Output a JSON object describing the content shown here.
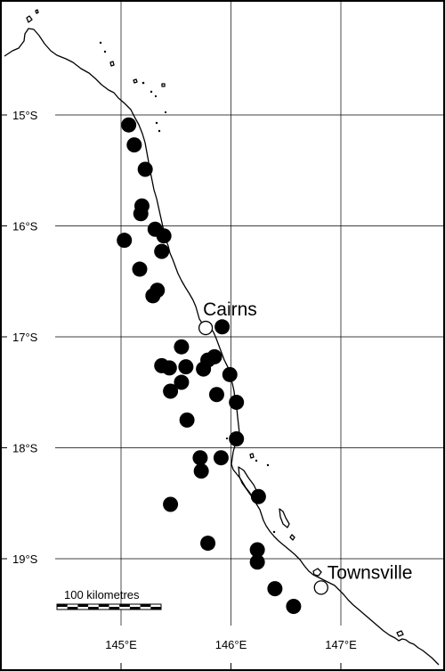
{
  "map": {
    "lat_labels": [
      {
        "value": -15,
        "text": "15°S"
      },
      {
        "value": -16,
        "text": "16°S"
      },
      {
        "value": -17,
        "text": "17°S"
      },
      {
        "value": -18,
        "text": "18°S"
      },
      {
        "value": -19,
        "text": "19°S"
      }
    ],
    "lon_labels": [
      {
        "value": 145,
        "text": "145°E"
      },
      {
        "value": 146,
        "text": "146°E"
      },
      {
        "value": 147,
        "text": "147°E"
      }
    ],
    "towns": [
      {
        "name": "Cairns",
        "lon": 145.77,
        "lat": -16.92
      },
      {
        "name": "Townsville",
        "lon": 146.82,
        "lat": -19.26
      }
    ],
    "scale_bar": {
      "label": "100 kilometres"
    },
    "colors": {
      "site": "#000000",
      "town_fill": "#ffffff",
      "grid": "#000000",
      "coast": "#000000"
    },
    "sites": [
      {
        "lon": 145.07,
        "lat": -15.09
      },
      {
        "lon": 145.12,
        "lat": -15.27
      },
      {
        "lon": 145.22,
        "lat": -15.49
      },
      {
        "lon": 145.19,
        "lat": -15.82
      },
      {
        "lon": 145.18,
        "lat": -15.89
      },
      {
        "lon": 145.31,
        "lat": -16.03
      },
      {
        "lon": 145.39,
        "lat": -16.09
      },
      {
        "lon": 145.03,
        "lat": -16.13
      },
      {
        "lon": 145.37,
        "lat": -16.23
      },
      {
        "lon": 145.17,
        "lat": -16.39
      },
      {
        "lon": 145.33,
        "lat": -16.58
      },
      {
        "lon": 145.29,
        "lat": -16.63
      },
      {
        "lon": 145.92,
        "lat": -16.91
      },
      {
        "lon": 145.55,
        "lat": -17.09
      },
      {
        "lon": 145.85,
        "lat": -17.18
      },
      {
        "lon": 145.79,
        "lat": -17.21
      },
      {
        "lon": 145.37,
        "lat": -17.26
      },
      {
        "lon": 145.59,
        "lat": -17.27
      },
      {
        "lon": 145.44,
        "lat": -17.28
      },
      {
        "lon": 145.75,
        "lat": -17.29
      },
      {
        "lon": 145.99,
        "lat": -17.34
      },
      {
        "lon": 145.55,
        "lat": -17.41
      },
      {
        "lon": 145.45,
        "lat": -17.49
      },
      {
        "lon": 145.87,
        "lat": -17.52
      },
      {
        "lon": 146.05,
        "lat": -17.59
      },
      {
        "lon": 145.6,
        "lat": -17.75
      },
      {
        "lon": 146.05,
        "lat": -17.92
      },
      {
        "lon": 145.72,
        "lat": -18.09
      },
      {
        "lon": 145.91,
        "lat": -18.09
      },
      {
        "lon": 145.73,
        "lat": -18.21
      },
      {
        "lon": 146.25,
        "lat": -18.44
      },
      {
        "lon": 145.45,
        "lat": -18.51
      },
      {
        "lon": 145.79,
        "lat": -18.86
      },
      {
        "lon": 146.24,
        "lat": -18.92
      },
      {
        "lon": 146.24,
        "lat": -19.03
      },
      {
        "lon": 146.4,
        "lat": -19.27
      },
      {
        "lon": 146.57,
        "lat": -19.43
      }
    ]
  }
}
